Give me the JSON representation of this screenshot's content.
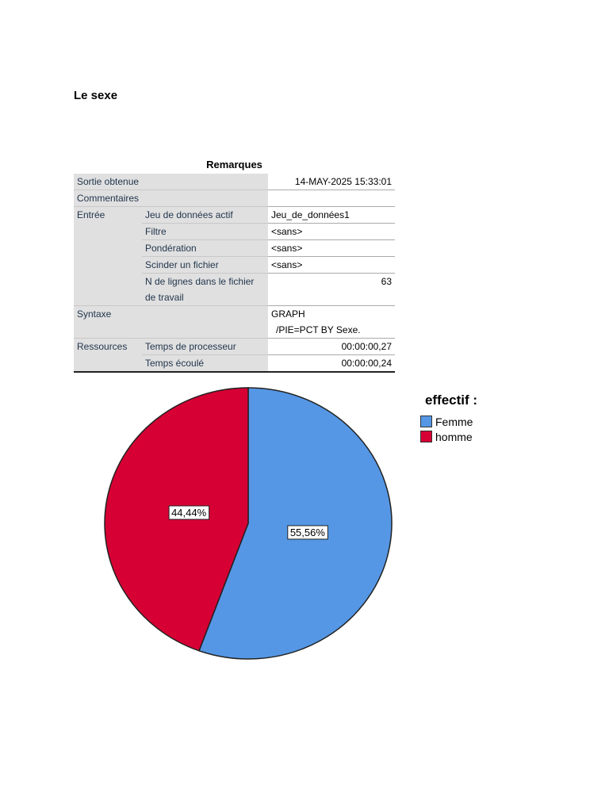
{
  "heading": "Le sexe",
  "table": {
    "title": "Remarques",
    "rows": [
      {
        "label": "Sortie obtenue",
        "value": "14-MAY-2025 15:33:01"
      },
      {
        "label": "Commentaires"
      },
      {
        "label": "Entrée",
        "items": [
          {
            "label": "Jeu de données actif",
            "value": "Jeu_de_données1"
          },
          {
            "label": "Filtre",
            "value": "<sans>"
          },
          {
            "label": "Pondération",
            "value": "<sans>"
          },
          {
            "label": "Scinder un fichier",
            "value": "<sans>"
          },
          {
            "label": "N de lignes dans le fichier de travail",
            "value": "63"
          }
        ]
      },
      {
        "label": "Syntaxe",
        "value": [
          "GRAPH",
          "/PIE=PCT BY Sexe."
        ]
      },
      {
        "label": "Ressources",
        "items": [
          {
            "label": "Temps de processeur",
            "value": "00:00:00,27"
          },
          {
            "label": "Temps écoulé",
            "value": "00:00:00,24"
          }
        ]
      }
    ]
  },
  "chart_data": {
    "type": "pie",
    "legend_title": "effectif :",
    "categories": [
      "Femme",
      "homme"
    ],
    "values": [
      55.56,
      44.44
    ],
    "value_labels": [
      "55,56%",
      "44,44%"
    ],
    "colors": [
      "#5597e5",
      "#d70034"
    ]
  }
}
